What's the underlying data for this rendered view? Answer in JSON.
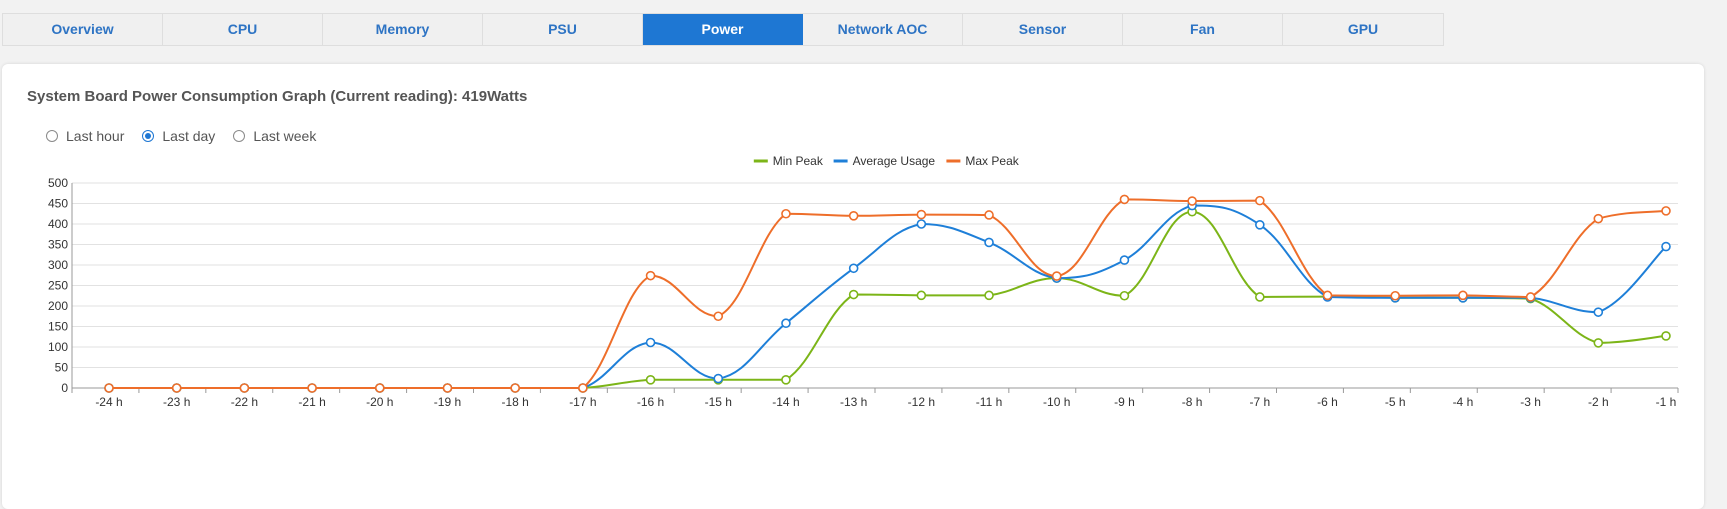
{
  "tabs": [
    {
      "label": "Overview",
      "active": false
    },
    {
      "label": "CPU",
      "active": false
    },
    {
      "label": "Memory",
      "active": false
    },
    {
      "label": "PSU",
      "active": false
    },
    {
      "label": "Power",
      "active": true
    },
    {
      "label": "Network AOC",
      "active": false
    },
    {
      "label": "Sensor",
      "active": false
    },
    {
      "label": "Fan",
      "active": false
    },
    {
      "label": "GPU",
      "active": false
    }
  ],
  "card": {
    "title": "System Board Power Consumption Graph (Current reading): 419Watts"
  },
  "range_options": [
    {
      "label": "Last hour",
      "checked": false
    },
    {
      "label": "Last day",
      "checked": true
    },
    {
      "label": "Last week",
      "checked": false
    }
  ],
  "chart_data": {
    "type": "line",
    "title": "",
    "xlabel": "",
    "ylabel": "",
    "ylim": [
      0,
      500
    ],
    "yticks": [
      0,
      50,
      100,
      150,
      200,
      250,
      300,
      350,
      400,
      450,
      500
    ],
    "grid": true,
    "legend_position": "top-center",
    "categories": [
      "-24 h",
      "-23 h",
      "-22 h",
      "-21 h",
      "-20 h",
      "-19 h",
      "-18 h",
      "-17 h",
      "-16 h",
      "-15 h",
      "-14 h",
      "-13 h",
      "-12 h",
      "-11 h",
      "-10 h",
      "-9 h",
      "-8 h",
      "-7 h",
      "-6 h",
      "-5 h",
      "-4 h",
      "-3 h",
      "-2 h",
      "-1 h"
    ],
    "series": [
      {
        "name": "Min Peak",
        "color": "#7cb518",
        "values": [
          0,
          0,
          0,
          0,
          0,
          0,
          0,
          0,
          20,
          20,
          20,
          228,
          226,
          226,
          268,
          225,
          430,
          222,
          223,
          220,
          220,
          218,
          110,
          127
        ]
      },
      {
        "name": "Average Usage",
        "color": "#1e7fd8",
        "values": [
          0,
          0,
          0,
          0,
          0,
          0,
          0,
          0,
          111,
          23,
          158,
          292,
          400,
          355,
          268,
          312,
          445,
          398,
          222,
          220,
          220,
          220,
          185,
          345
        ]
      },
      {
        "name": "Max Peak",
        "color": "#ee6e2a",
        "values": [
          0,
          0,
          0,
          0,
          0,
          0,
          0,
          0,
          274,
          175,
          425,
          420,
          423,
          422,
          273,
          460,
          456,
          457,
          226,
          225,
          226,
          222,
          413,
          432
        ]
      }
    ]
  }
}
